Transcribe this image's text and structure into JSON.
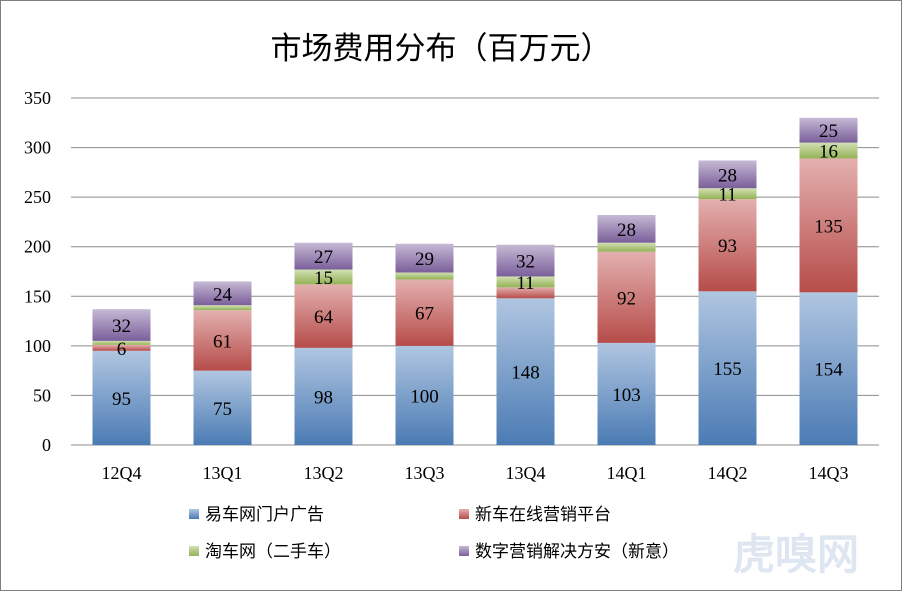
{
  "chart_data": {
    "type": "bar",
    "stacked": true,
    "title": "市场费用分布（百万元）",
    "categories": [
      "12Q4",
      "13Q1",
      "13Q2",
      "13Q3",
      "13Q4",
      "14Q1",
      "14Q2",
      "14Q3"
    ],
    "series": [
      {
        "name": "易车网门户广告",
        "values": [
          95,
          75,
          98,
          100,
          148,
          103,
          155,
          154
        ],
        "color": "#4f81bd"
      },
      {
        "name": "新车在线营销平台",
        "values": [
          6,
          61,
          64,
          67,
          11,
          92,
          93,
          135
        ],
        "color": "#c0504d"
      },
      {
        "name": "淘车网（二手车）",
        "values": [
          4,
          5,
          15,
          7,
          11,
          9,
          11,
          16
        ],
        "color": "#9bbb59"
      },
      {
        "name": "数字营销解决方安（新意）",
        "values": [
          32,
          24,
          27,
          29,
          32,
          28,
          28,
          25
        ],
        "color": "#8064a2"
      }
    ],
    "data_labels": [
      [
        "95",
        "6",
        "",
        "32"
      ],
      [
        "75",
        "61",
        "",
        "24"
      ],
      [
        "98",
        "64",
        "15",
        "27"
      ],
      [
        "100",
        "67",
        "",
        "29"
      ],
      [
        "148",
        "",
        "11",
        "32"
      ],
      [
        "103",
        "92",
        "",
        "28"
      ],
      [
        "155",
        "93",
        "11",
        "28"
      ],
      [
        "154",
        "135",
        "16",
        "25"
      ]
    ],
    "yticks": [
      "0",
      "50",
      "100",
      "150",
      "200",
      "250",
      "300",
      "350"
    ],
    "ylim": [
      0,
      350
    ],
    "grid": true,
    "legend_position": "bottom"
  },
  "watermark": "虎嗅网"
}
